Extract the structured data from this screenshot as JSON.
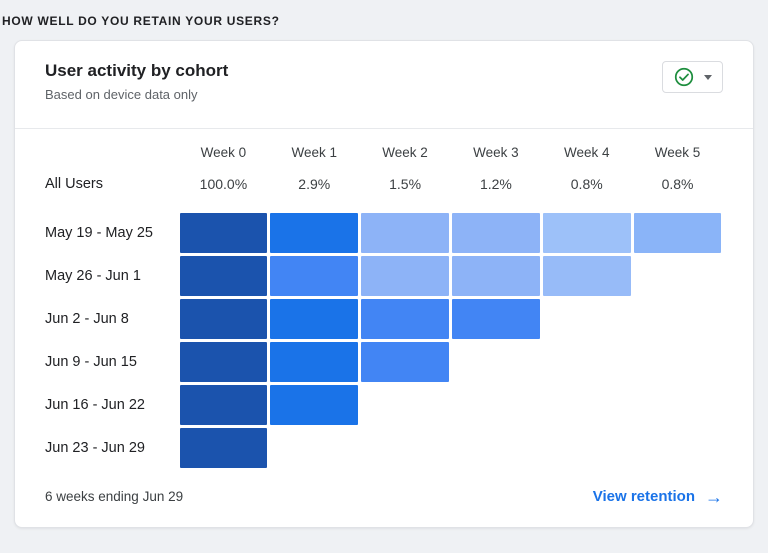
{
  "page": {
    "section_header": "HOW WELL DO YOU RETAIN YOUR USERS?"
  },
  "card": {
    "title": "User activity by cohort",
    "subtitle": "Based on device data only",
    "status_dropdown": {
      "icon": "check-circle",
      "icon_color": "#1e8e3e"
    },
    "footer": {
      "summary": "6 weeks ending Jun 29",
      "link_label": "View retention",
      "link_arrow": "→",
      "link_color": "#1a73e8"
    }
  },
  "chart_data": {
    "type": "heatmap",
    "title": "User activity by cohort",
    "subtitle": "Based on device data only",
    "columns": [
      "Week 0",
      "Week 1",
      "Week 2",
      "Week 3",
      "Week 4",
      "Week 5"
    ],
    "all_users": {
      "label": "All Users",
      "values": [
        "100.0%",
        "2.9%",
        "1.5%",
        "1.2%",
        "0.8%",
        "0.8%"
      ]
    },
    "rows": [
      {
        "label": "May 19 - May 25",
        "cells": [
          "#1b53ad",
          "#1a73e8",
          "#8db3f7",
          "#8db3f7",
          "#9dc1f9",
          "#8ab4f8"
        ]
      },
      {
        "label": "May 26 - Jun 1",
        "cells": [
          "#1b53ad",
          "#4285f4",
          "#8db3f7",
          "#8db3f7",
          "#97bbf8"
        ]
      },
      {
        "label": "Jun 2 - Jun 8",
        "cells": [
          "#1b53ad",
          "#1a73e8",
          "#4285f4",
          "#4285f4"
        ]
      },
      {
        "label": "Jun 9 - Jun 15",
        "cells": [
          "#1b53ad",
          "#1a73e8",
          "#4285f4"
        ]
      },
      {
        "label": "Jun 16 - Jun 22",
        "cells": [
          "#1b53ad",
          "#1a73e8"
        ]
      },
      {
        "label": "Jun 23 - Jun 29",
        "cells": [
          "#1b53ad"
        ]
      }
    ],
    "period_label": "6 weeks ending Jun 29"
  }
}
